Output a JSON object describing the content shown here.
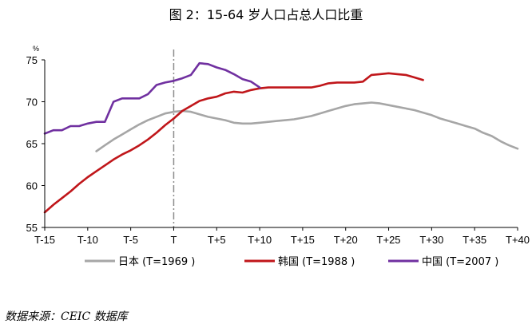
{
  "chart_data": {
    "type": "line",
    "title": "图 2：15-64 岁人口占总人口比重",
    "ylabel": "%",
    "ylim": [
      55,
      75
    ],
    "yticks": [
      "55",
      "60",
      "65",
      "70",
      "75"
    ],
    "xlim": [
      -15,
      40
    ],
    "xticks": [
      {
        "v": -15,
        "label": "T-15"
      },
      {
        "v": -10,
        "label": "T-10"
      },
      {
        "v": -5,
        "label": "T-5"
      },
      {
        "v": 0,
        "label": "T"
      },
      {
        "v": 5,
        "label": "T+5"
      },
      {
        "v": 10,
        "label": "T+10"
      },
      {
        "v": 15,
        "label": "T+15"
      },
      {
        "v": 20,
        "label": "T+20"
      },
      {
        "v": 25,
        "label": "T+25"
      },
      {
        "v": 30,
        "label": "T+30"
      },
      {
        "v": 35,
        "label": "T+35"
      },
      {
        "v": 40,
        "label": "T+40"
      }
    ],
    "reference_line_x": 0,
    "legend_position": "bottom",
    "series": [
      {
        "name": "日本 (T=1969 )",
        "color": "#a6a6a6",
        "x": [
          -9,
          -8,
          -7,
          -6,
          -5,
          -4,
          -3,
          -2,
          -1,
          0,
          1,
          2,
          3,
          4,
          5,
          6,
          7,
          8,
          9,
          10,
          11,
          12,
          13,
          14,
          15,
          16,
          17,
          18,
          19,
          20,
          21,
          22,
          23,
          24,
          25,
          26,
          27,
          28,
          29,
          30,
          31,
          32,
          33,
          34,
          35,
          36,
          37,
          38,
          39,
          40
        ],
        "values": [
          64.1,
          64.8,
          65.5,
          66.1,
          66.7,
          67.3,
          67.8,
          68.2,
          68.6,
          68.8,
          68.9,
          68.8,
          68.5,
          68.2,
          68.0,
          67.8,
          67.5,
          67.4,
          67.4,
          67.5,
          67.6,
          67.7,
          67.8,
          67.9,
          68.1,
          68.3,
          68.6,
          68.9,
          69.2,
          69.5,
          69.7,
          69.8,
          69.9,
          69.8,
          69.6,
          69.4,
          69.2,
          69.0,
          68.7,
          68.4,
          68.0,
          67.7,
          67.4,
          67.1,
          66.8,
          66.3,
          65.9,
          65.3,
          64.8,
          64.4
        ]
      },
      {
        "name": "韩国 (T=1988 )",
        "color": "#c0161a",
        "x": [
          -15,
          -14,
          -13,
          -12,
          -11,
          -10,
          -9,
          -8,
          -7,
          -6,
          -5,
          -4,
          -3,
          -2,
          -1,
          0,
          1,
          2,
          3,
          4,
          5,
          6,
          7,
          8,
          9,
          10,
          11,
          12,
          13,
          14,
          15,
          16,
          17,
          18,
          19,
          20,
          21,
          22,
          23,
          24,
          25,
          26,
          27,
          28,
          29
        ],
        "values": [
          56.8,
          57.7,
          58.5,
          59.3,
          60.2,
          61.0,
          61.7,
          62.4,
          63.1,
          63.7,
          64.2,
          64.8,
          65.5,
          66.3,
          67.2,
          68.0,
          68.9,
          69.5,
          70.1,
          70.4,
          70.6,
          71.0,
          71.2,
          71.1,
          71.4,
          71.6,
          71.7,
          71.7,
          71.7,
          71.7,
          71.7,
          71.7,
          71.9,
          72.2,
          72.3,
          72.3,
          72.3,
          72.4,
          73.2,
          73.3,
          73.4,
          73.3,
          73.2,
          72.9,
          72.6
        ]
      },
      {
        "name": "中国 (T=2007 )",
        "color": "#7030a0",
        "x": [
          -15,
          -14,
          -13,
          -12,
          -11,
          -10,
          -9,
          -8,
          -7,
          -6,
          -5,
          -4,
          -3,
          -2,
          -1,
          0,
          1,
          2,
          3,
          4,
          5,
          6,
          7,
          8,
          9,
          10
        ],
        "values": [
          66.2,
          66.6,
          66.6,
          67.1,
          67.1,
          67.4,
          67.6,
          67.6,
          70.0,
          70.4,
          70.4,
          70.4,
          70.9,
          72.0,
          72.3,
          72.5,
          72.8,
          73.2,
          74.6,
          74.5,
          74.1,
          73.8,
          73.3,
          72.7,
          72.4,
          71.7
        ]
      }
    ],
    "source": "数据来源：CEIC 数据库"
  }
}
